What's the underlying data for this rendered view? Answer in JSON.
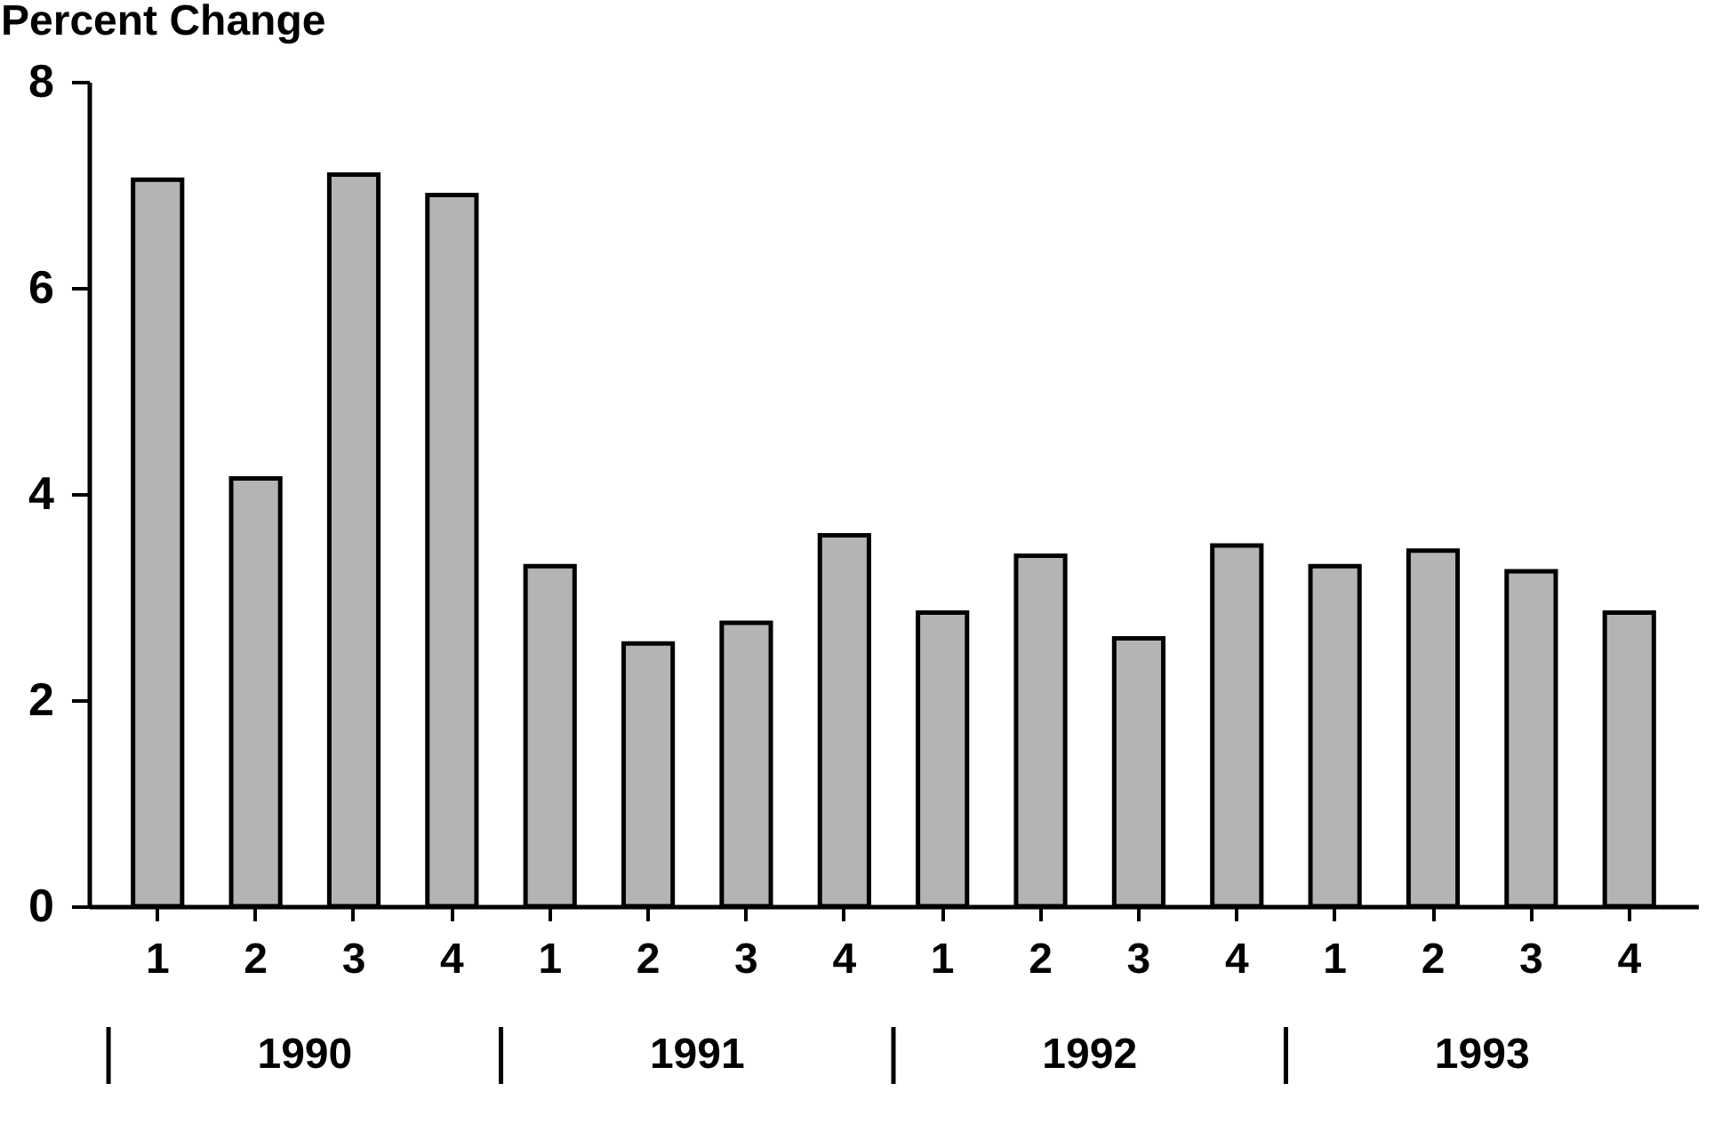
{
  "chart_data": {
    "type": "bar",
    "ylabel": "Percent Change",
    "categories": [
      "1",
      "2",
      "3",
      "4",
      "1",
      "2",
      "3",
      "4",
      "1",
      "2",
      "3",
      "4",
      "1",
      "2",
      "3",
      "4"
    ],
    "values": [
      7.05,
      4.15,
      7.1,
      6.9,
      3.3,
      2.55,
      2.75,
      3.6,
      2.85,
      3.4,
      2.6,
      3.5,
      3.3,
      3.45,
      3.25,
      2.85
    ],
    "color": "#b4b4b4",
    "ylim": [
      0,
      8
    ],
    "yticks": [
      0,
      2,
      4,
      6,
      8
    ],
    "grid": false,
    "annotations": [
      "1990",
      "1991",
      "1992",
      "1993"
    ]
  }
}
